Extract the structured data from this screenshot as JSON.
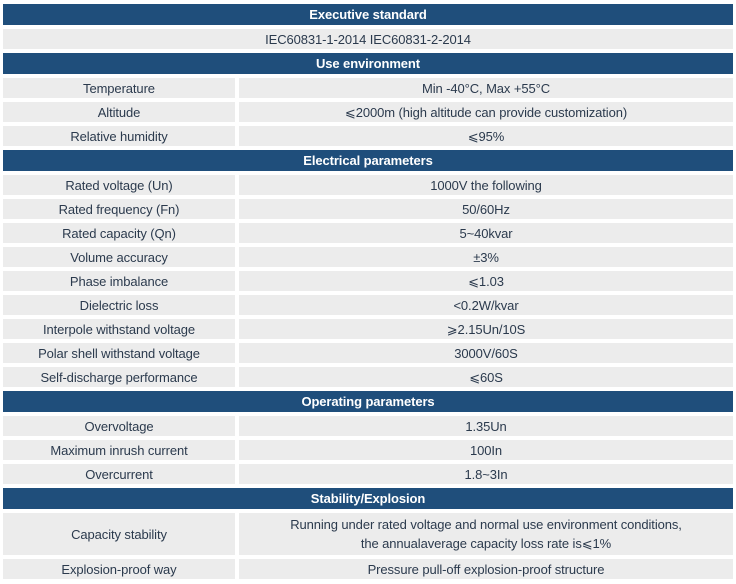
{
  "colors": {
    "header_bg": "#1f4e7b",
    "header_text": "#ffffff",
    "row_bg": "#ececec",
    "row_text": "#2b3a4d"
  },
  "table": {
    "sections": [
      {
        "title": "Executive standard",
        "rows": [
          {
            "type": "full",
            "value": "IEC60831-1-2014 IEC60831-2-2014"
          }
        ]
      },
      {
        "title": "Use environment",
        "rows": [
          {
            "label": "Temperature",
            "value": "Min -40°C, Max +55°C"
          },
          {
            "label": "Altitude",
            "value": "⩽2000m (high altitude can provide customization)"
          },
          {
            "label": "Relative humidity",
            "value": "⩽95%"
          }
        ]
      },
      {
        "title": "Electrical parameters",
        "rows": [
          {
            "label": "Rated voltage (Un)",
            "value": "1000V the following"
          },
          {
            "label": "Rated frequency (Fn)",
            "value": "50/60Hz"
          },
          {
            "label": "Rated capacity (Qn)",
            "value": "5~40kvar"
          },
          {
            "label": "Volume accuracy",
            "value": "±3%"
          },
          {
            "label": "Phase imbalance",
            "value": "⩽1.03"
          },
          {
            "label": "Dielectric loss",
            "value": "<0.2W/kvar"
          },
          {
            "label": "Interpole withstand voltage",
            "value": "⩾2.15Un/10S"
          },
          {
            "label": "Polar shell withstand voltage",
            "value": "3000V/60S"
          },
          {
            "label": "Self-discharge performance",
            "value": "⩽60S"
          }
        ]
      },
      {
        "title": "Operating parameters",
        "rows": [
          {
            "label": "Overvoltage",
            "value": "1.35Un"
          },
          {
            "label": "Maximum inrush current",
            "value": "100In"
          },
          {
            "label": "Overcurrent",
            "value": "1.8~3In"
          }
        ]
      },
      {
        "title": "Stability/Explosion",
        "rows": [
          {
            "label": "Capacity stability",
            "value": "Running under rated voltage and normal use environment conditions,\nthe annualaverage capacity loss rate is⩽1%",
            "tall": true
          },
          {
            "label": "Explosion-proof way",
            "value": "Pressure pull-off explosion-proof structure"
          }
        ]
      }
    ]
  }
}
